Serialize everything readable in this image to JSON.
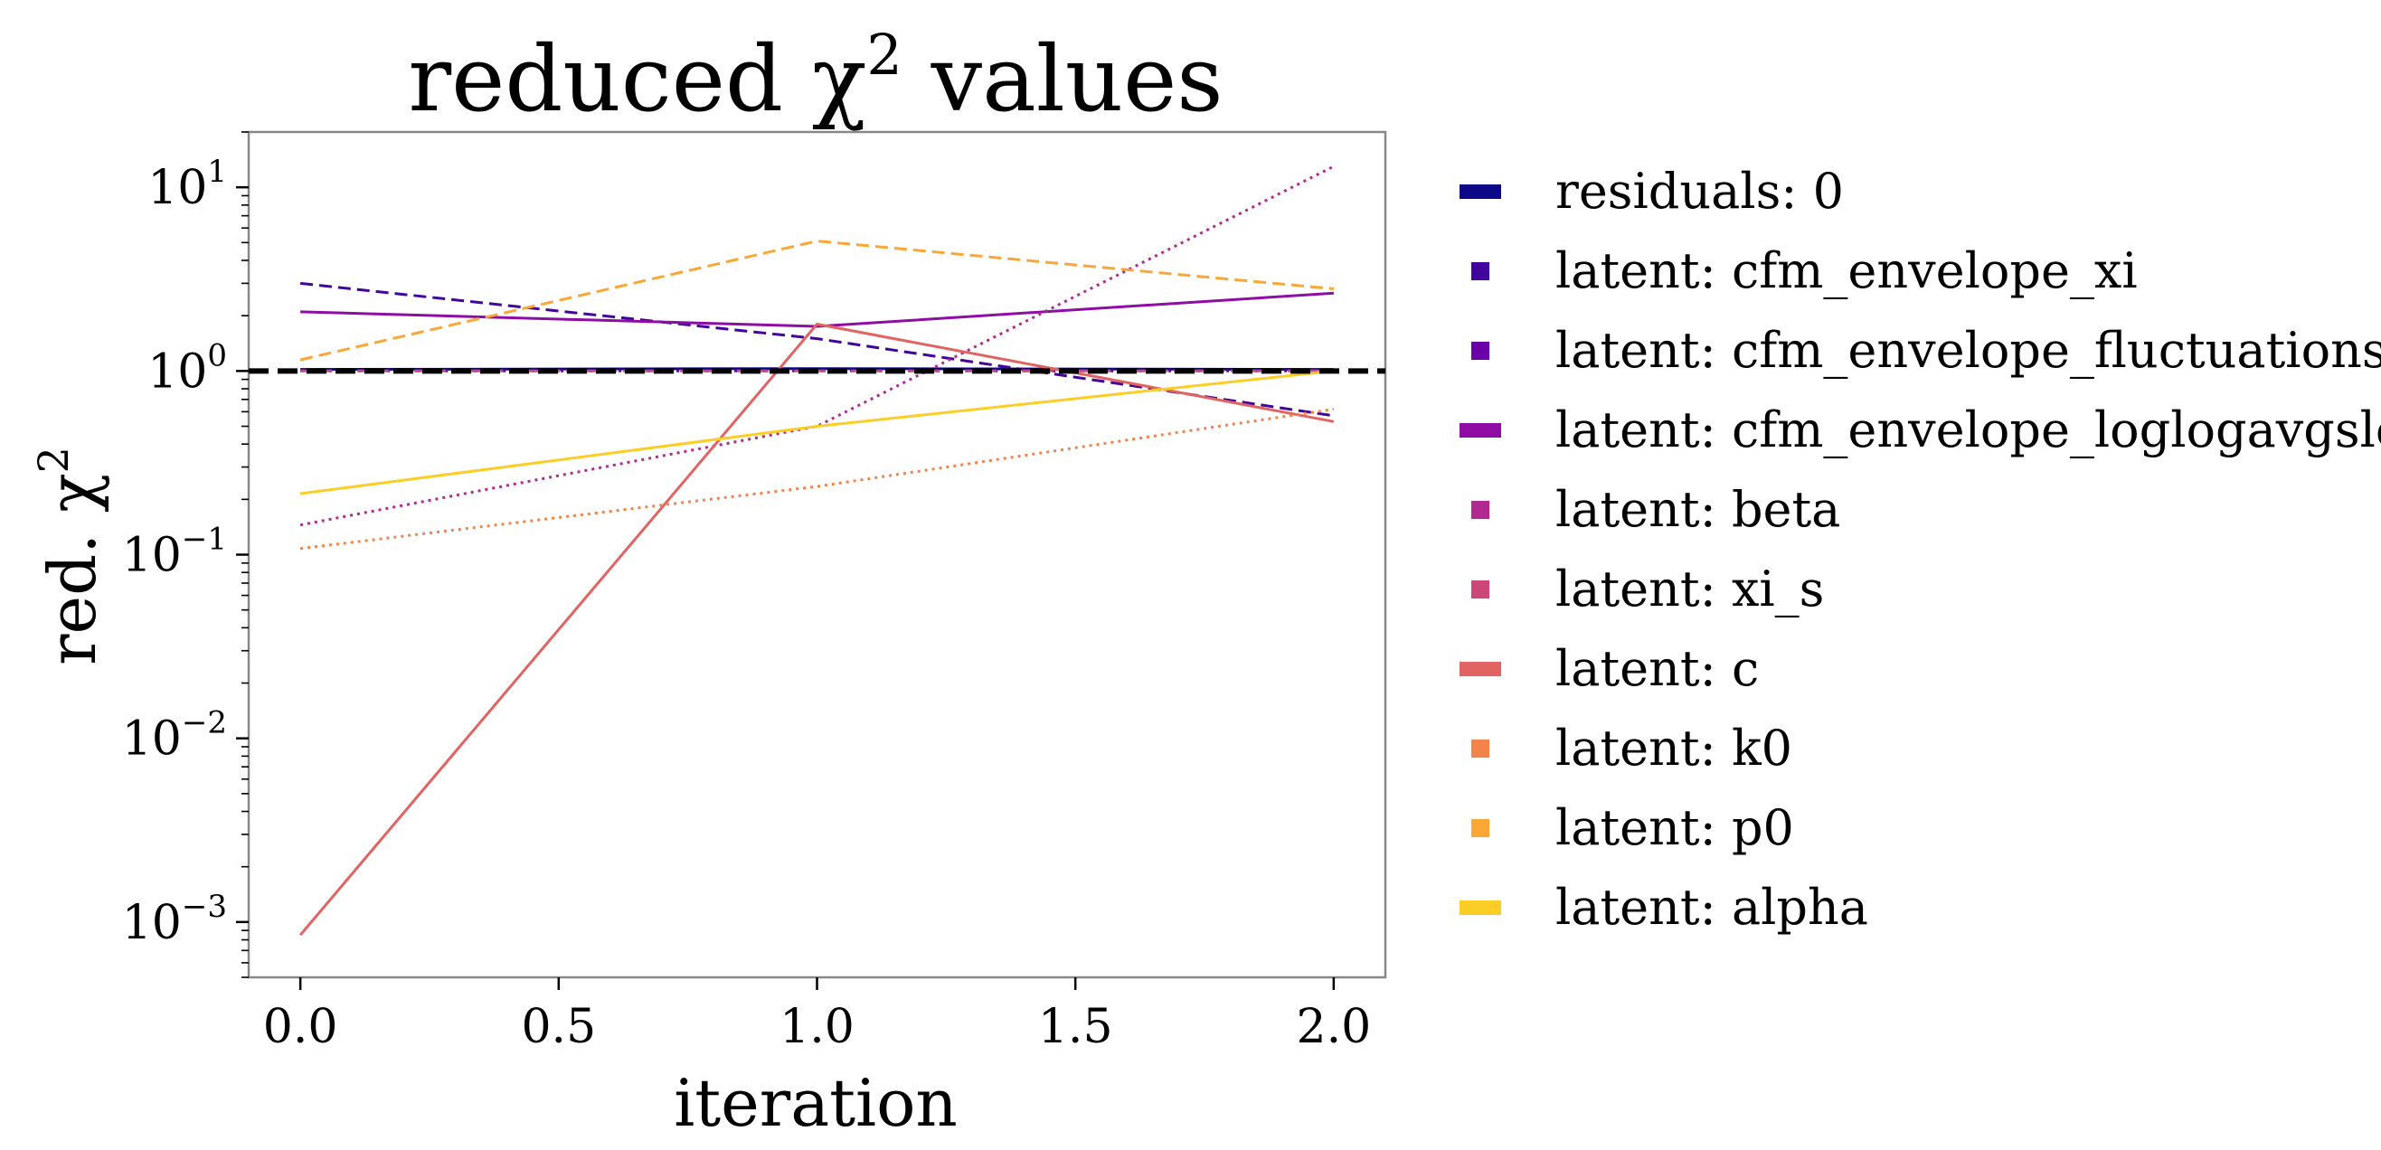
{
  "chart_data": {
    "type": "line",
    "title": {
      "base": "reduced χ",
      "sup": "2",
      "after": " values"
    },
    "xlabel": "iteration",
    "ylabel": {
      "base": "red. χ",
      "sup": "2"
    },
    "yscale": "log",
    "xlim": [
      -0.1,
      2.1
    ],
    "ylim": [
      0.0005,
      20
    ],
    "x_ticks": [
      {
        "value": 0.0,
        "label": "0.0"
      },
      {
        "value": 0.5,
        "label": "0.5"
      },
      {
        "value": 1.0,
        "label": "1.0"
      },
      {
        "value": 1.5,
        "label": "1.5"
      },
      {
        "value": 2.0,
        "label": "2.0"
      }
    ],
    "y_ticks": [
      {
        "value": 10,
        "base": "10",
        "exp": "1"
      },
      {
        "value": 1,
        "base": "10",
        "exp": "0"
      },
      {
        "value": 0.1,
        "base": "10",
        "exp": "−1"
      },
      {
        "value": 0.01,
        "base": "10",
        "exp": "−2"
      },
      {
        "value": 0.001,
        "base": "10",
        "exp": "−3"
      }
    ],
    "reference_line": {
      "y": 1.0,
      "color": "#000000",
      "style": "dashed"
    },
    "legend_position": "outside-right",
    "grid": false,
    "x": [
      0,
      1,
      2
    ],
    "series": [
      {
        "name": "residuals: 0",
        "values": [
          1.02,
          1.03,
          1.02
        ],
        "color": "#0d0887",
        "style": "solid"
      },
      {
        "name": "latent: cfm_envelope_xi",
        "values": [
          3.0,
          1.5,
          0.57
        ],
        "color": "#41049d",
        "style": "dashed"
      },
      {
        "name": "latent: cfm_envelope_fluctuations",
        "values": [
          1.0,
          1.0,
          1.0
        ],
        "color": "#6a00a8",
        "style": "dotted"
      },
      {
        "name": "latent: cfm_envelope_loglogavgslope",
        "values": [
          2.1,
          1.75,
          2.65
        ],
        "color": "#8f0da4",
        "style": "solid"
      },
      {
        "name": "latent: beta",
        "values": [
          0.145,
          0.5,
          13.0
        ],
        "color": "#b12a90",
        "style": "dotted"
      },
      {
        "name": "latent: xi_s",
        "values": [
          1.0,
          1.0,
          1.0
        ],
        "color": "#cc4778",
        "style": "dashed"
      },
      {
        "name": "latent: c",
        "values": [
          0.00085,
          1.8,
          0.53
        ],
        "color": "#e16462",
        "style": "solid"
      },
      {
        "name": "latent: k0",
        "values": [
          0.108,
          0.235,
          0.62
        ],
        "color": "#f2844b",
        "style": "dotted"
      },
      {
        "name": "latent: p0",
        "values": [
          1.15,
          5.1,
          2.8
        ],
        "color": "#fca636",
        "style": "dashed"
      },
      {
        "name": "latent: alpha",
        "values": [
          0.215,
          0.5,
          1.0
        ],
        "color": "#fcce25",
        "style": "solid"
      }
    ]
  }
}
